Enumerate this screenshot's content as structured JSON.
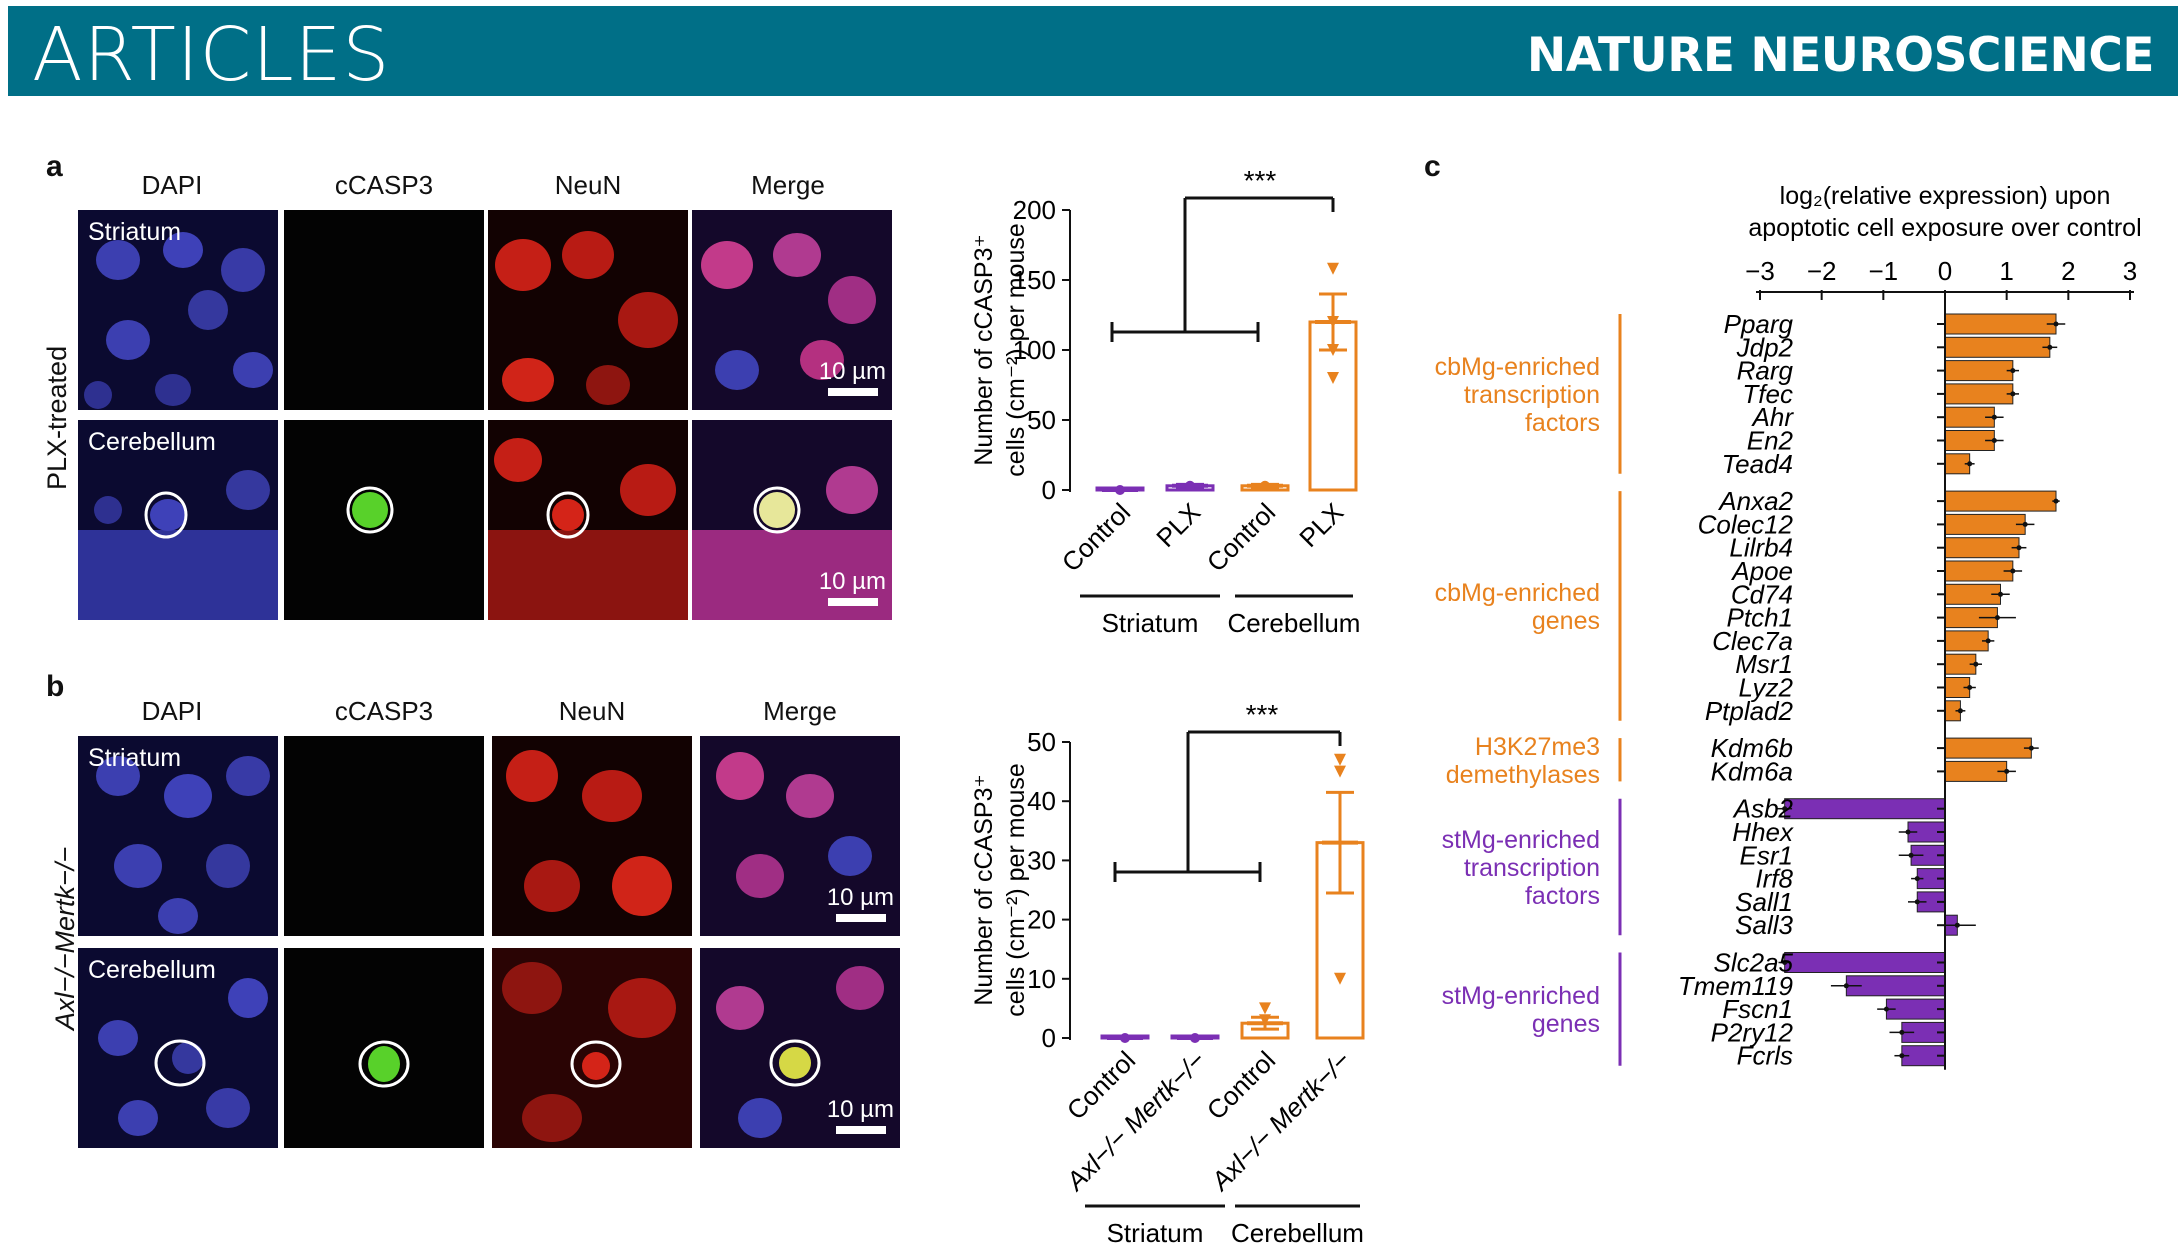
{
  "header": {
    "section": "ARTICLES",
    "journal": "NATURE NEUROSCIENCE"
  },
  "panel_a": {
    "label": "a",
    "row_label": "PLX-treated",
    "columns": [
      "DAPI",
      "cCASP3",
      "NeuN",
      "Merge"
    ],
    "regions": [
      "Striatum",
      "Cerebellum"
    ],
    "scale": "10 µm"
  },
  "panel_b": {
    "label": "b",
    "row_label": "Axl−/−Mertk−/−",
    "columns": [
      "DAPI",
      "cCASP3",
      "NeuN",
      "Merge"
    ],
    "regions": [
      "Striatum",
      "Cerebellum"
    ],
    "scale": "10 µm"
  },
  "panel_c": {
    "label": "c"
  },
  "colors": {
    "purple": "#7b2fb4",
    "orange": "#e8821e",
    "teal": "#006f87"
  },
  "chart_data": [
    {
      "type": "bar",
      "ylabel": "Number of cCASP3⁺ cells (cm⁻²) per mouse",
      "categories": [
        "Control",
        "PLX",
        "Control",
        "PLX"
      ],
      "groups": [
        "Striatum",
        "Cerebellum"
      ],
      "values": [
        0,
        3,
        3,
        120
      ],
      "errors": [
        0,
        1,
        1,
        20
      ],
      "ylim": [
        0,
        200
      ],
      "yticks": [
        0,
        50,
        100,
        150,
        200
      ],
      "significance": "***"
    },
    {
      "type": "bar",
      "ylabel": "Number of cCASP3⁺ cells (cm⁻²) per mouse",
      "categories": [
        "Control",
        "Axl−/− Mertk−/−",
        "Control",
        "Axl−/− Mertk−/−"
      ],
      "groups": [
        "Striatum",
        "Cerebellum"
      ],
      "values": [
        0,
        0,
        2.5,
        33
      ],
      "errors": [
        0,
        0,
        1,
        8.5
      ],
      "ylim": [
        0,
        50
      ],
      "yticks": [
        0,
        10,
        20,
        30,
        40,
        50
      ],
      "significance": "***"
    },
    {
      "type": "bar",
      "orientation": "horizontal",
      "xlabel": "log2(relative expression) upon apoptotic cell exposure over control",
      "xlim": [
        -3,
        3
      ],
      "xticks": [
        -3,
        -2,
        -1,
        0,
        1,
        2,
        3
      ],
      "groups": [
        {
          "name": "cbMg-enriched transcription factors",
          "color": "orange",
          "genes": [
            "Pparg",
            "Jdp2",
            "Rarg",
            "Tfec",
            "Ahr",
            "En2",
            "Tead4"
          ],
          "values": [
            1.8,
            1.7,
            1.1,
            1.1,
            0.8,
            0.8,
            0.4
          ],
          "errors": [
            0.15,
            0.12,
            0.1,
            0.1,
            0.15,
            0.15,
            0.08
          ]
        },
        {
          "name": "cbMg-enriched genes",
          "color": "orange",
          "genes": [
            "Anxa2",
            "Colec12",
            "Lilrb4",
            "Apoe",
            "Cd74",
            "Ptch1",
            "Clec7a",
            "Msr1",
            "Lyz2",
            "Ptplad2"
          ],
          "values": [
            1.8,
            1.3,
            1.2,
            1.1,
            0.9,
            0.85,
            0.7,
            0.5,
            0.4,
            0.25
          ],
          "errors": [
            0.06,
            0.15,
            0.12,
            0.15,
            0.15,
            0.3,
            0.1,
            0.1,
            0.1,
            0.08
          ]
        },
        {
          "name": "H3K27me3 demethylases",
          "color": "orange",
          "genes": [
            "Kdm6b",
            "Kdm6a"
          ],
          "values": [
            1.4,
            1.0
          ],
          "errors": [
            0.12,
            0.15
          ]
        },
        {
          "name": "stMg-enriched transcription factors",
          "color": "purple",
          "genes": [
            "Asb2",
            "Hhex",
            "Esr1",
            "Irf8",
            "Sall1",
            "Sall3"
          ],
          "values": [
            -2.6,
            -0.6,
            -0.55,
            -0.45,
            -0.45,
            0.2
          ],
          "errors": [
            0.12,
            0.15,
            0.2,
            0.1,
            0.15,
            0.3
          ]
        },
        {
          "name": "stMg-enriched genes",
          "color": "purple",
          "genes": [
            "Slc2a5",
            "Tmem119",
            "Fscn1",
            "P2ry12",
            "Fcrls"
          ],
          "values": [
            -2.6,
            -1.6,
            -0.95,
            -0.7,
            -0.7
          ],
          "errors": [
            0.1,
            0.25,
            0.15,
            0.2,
            0.12
          ]
        }
      ]
    }
  ]
}
